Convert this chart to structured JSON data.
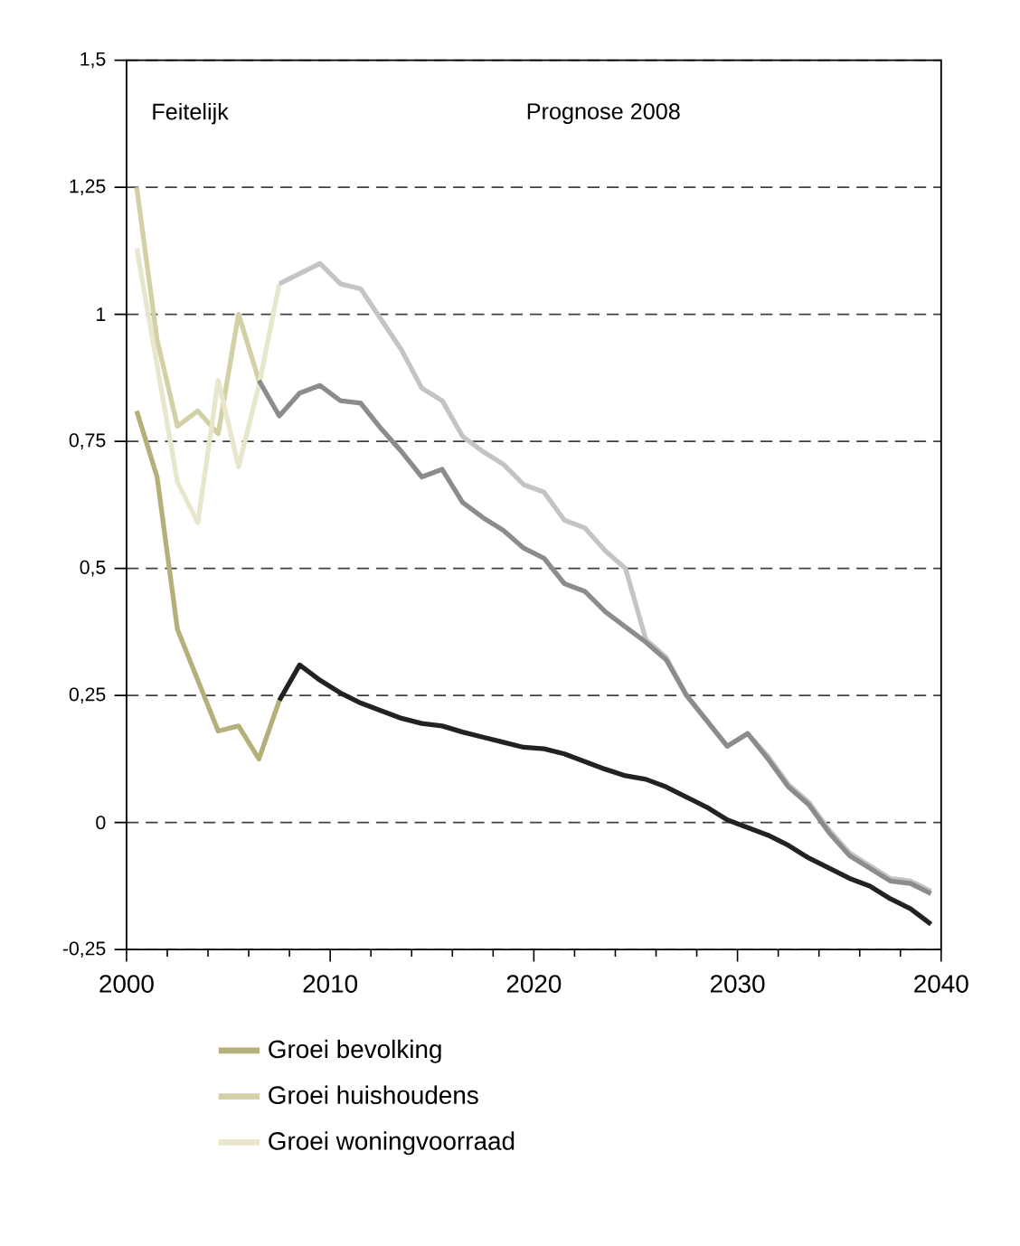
{
  "chart_data": {
    "type": "line",
    "annotations": [
      "Feitelijk",
      "Prognose 2008"
    ],
    "xlim": [
      2000,
      2040
    ],
    "xticks": [
      2000,
      2010,
      2020,
      2030,
      2040
    ],
    "ylim": [
      -0.25,
      1.5
    ],
    "yticks": [
      {
        "value": -0.25,
        "label": "-0,25"
      },
      0,
      {
        "value": 0.25,
        "label": "0,25"
      },
      {
        "value": 0.5,
        "label": "0,5"
      },
      {
        "value": 0.75,
        "label": "0,75"
      },
      {
        "value": 1,
        "label": "1"
      },
      {
        "value": 1.25,
        "label": "1,25"
      },
      {
        "value": 1.5,
        "label": "1,5"
      }
    ],
    "grid": "y",
    "legend": "bottom",
    "line_style": "solid",
    "marker": "none",
    "series": [
      {
        "name": "Groei bevolking",
        "color": "#b5b07a",
        "x": [
          2000.5,
          2001.5,
          2002.5,
          2003.5,
          2004.5,
          2005.5,
          2006.5,
          2007.5
        ],
        "values": [
          0.81,
          0.68,
          0.38,
          0.28,
          0.18,
          0.19,
          0.125,
          0.24
        ]
      },
      {
        "name": "Groei huishoudens",
        "color": "#d3d0a5",
        "x": [
          2000.5,
          2001.5,
          2002.5,
          2003.5,
          2004.5,
          2005.5,
          2006.5
        ],
        "values": [
          1.25,
          0.95,
          0.78,
          0.81,
          0.765,
          1.0,
          0.87
        ]
      },
      {
        "name": "Groei woningvoorraad",
        "color": "#e8e6cc",
        "x": [
          2000.5,
          2001.5,
          2002.5,
          2003.5,
          2004.5,
          2005.5,
          2006.5,
          2007.5
        ],
        "values": [
          1.13,
          0.9,
          0.67,
          0.59,
          0.87,
          0.7,
          0.86,
          1.06
        ]
      },
      {
        "color": "#c4c4c4",
        "x": [
          2007.5,
          2008.5,
          2009.5,
          2010.5,
          2011.5,
          2012.5,
          2013.5,
          2014.5,
          2015.5,
          2016.5,
          2017.5,
          2018.5,
          2019.5,
          2020.5,
          2021.5,
          2022.5,
          2023.5,
          2024.5,
          2025.5,
          2026.5,
          2027.5,
          2028.5,
          2029.5,
          2030.5,
          2031.5,
          2032.5,
          2033.5,
          2034.5,
          2035.5,
          2036.5,
          2037.5,
          2038.5,
          2039.5
        ],
        "values": [
          1.06,
          1.08,
          1.1,
          1.06,
          1.05,
          0.99,
          0.93,
          0.855,
          0.83,
          0.76,
          0.73,
          0.705,
          0.665,
          0.65,
          0.595,
          0.58,
          0.535,
          0.5,
          0.36,
          0.325,
          0.25,
          0.2,
          0.15,
          0.175,
          0.13,
          0.075,
          0.04,
          -0.015,
          -0.06,
          -0.085,
          -0.11,
          -0.115,
          -0.135
        ]
      },
      {
        "color": "#8c8c8c",
        "x": [
          2006.5,
          2007.5,
          2008.5,
          2009.5,
          2010.5,
          2011.5,
          2012.5,
          2013.5,
          2014.5,
          2015.5,
          2016.5,
          2017.5,
          2018.5,
          2019.5,
          2020.5,
          2021.5,
          2022.5,
          2023.5,
          2024.5,
          2025.5,
          2026.5,
          2027.5,
          2028.5,
          2029.5,
          2030.5,
          2031.5,
          2032.5,
          2033.5,
          2034.5,
          2035.5,
          2036.5,
          2037.5,
          2038.5,
          2039.5
        ],
        "values": [
          0.87,
          0.8,
          0.845,
          0.86,
          0.83,
          0.825,
          0.775,
          0.73,
          0.68,
          0.695,
          0.63,
          0.6,
          0.575,
          0.54,
          0.52,
          0.47,
          0.455,
          0.415,
          0.385,
          0.355,
          0.32,
          0.25,
          0.2,
          0.15,
          0.175,
          0.125,
          0.07,
          0.035,
          -0.02,
          -0.065,
          -0.09,
          -0.115,
          -0.12,
          -0.14
        ]
      },
      {
        "color": "#222222",
        "x": [
          2007.5,
          2008.5,
          2009.5,
          2010.5,
          2011.5,
          2012.5,
          2013.5,
          2014.5,
          2015.5,
          2016.5,
          2017.5,
          2018.5,
          2019.5,
          2020.5,
          2021.5,
          2022.5,
          2023.5,
          2024.5,
          2025.5,
          2026.5,
          2027.5,
          2028.5,
          2029.5,
          2030.5,
          2031.5,
          2032.5,
          2033.5,
          2034.5,
          2035.5,
          2036.5,
          2037.5,
          2038.5,
          2039.5
        ],
        "values": [
          0.24,
          0.31,
          0.28,
          0.255,
          0.235,
          0.22,
          0.205,
          0.195,
          0.19,
          0.178,
          0.168,
          0.158,
          0.148,
          0.145,
          0.135,
          0.12,
          0.105,
          0.092,
          0.085,
          0.07,
          0.05,
          0.03,
          0.005,
          -0.01,
          -0.025,
          -0.045,
          -0.07,
          -0.09,
          -0.11,
          -0.125,
          -0.15,
          -0.17,
          -0.2
        ]
      }
    ]
  }
}
